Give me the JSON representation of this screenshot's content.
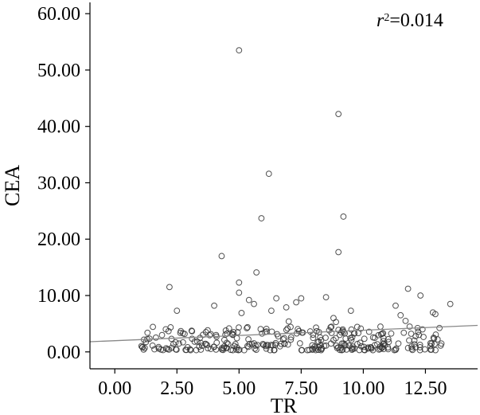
{
  "chart_data": {
    "type": "scatter",
    "title": "",
    "xlabel": "TR",
    "ylabel": "CEA",
    "xlim": [
      -1.0,
      14.6
    ],
    "ylim": [
      -3.0,
      62.0
    ],
    "xticks": [
      0,
      2.5,
      5,
      7.5,
      10,
      12.5
    ],
    "xtick_labels": [
      "0.00",
      "2.50",
      "5.00",
      "7.50",
      "10.00",
      "12.50"
    ],
    "yticks": [
      0,
      10,
      20,
      30,
      40,
      50,
      60
    ],
    "ytick_labels": [
      "0.00",
      "10.00",
      "20.00",
      "30.00",
      "40.00",
      "50.00",
      "60.00"
    ],
    "annotation": {
      "r_symbol": "r",
      "r_power": "2",
      "r_value": "=0.014"
    },
    "grid": false,
    "point_color": "#333333",
    "trendline_color": "#888888",
    "trendline": {
      "x": [
        -1.0,
        14.6
      ],
      "y": [
        1.8,
        4.7
      ]
    },
    "outliers": [
      [
        5.0,
        53.5
      ],
      [
        9.0,
        42.2
      ],
      [
        6.2,
        31.6
      ],
      [
        5.9,
        23.7
      ],
      [
        9.2,
        24.0
      ],
      [
        9.0,
        17.7
      ],
      [
        4.3,
        17.0
      ],
      [
        5.7,
        14.1
      ],
      [
        5.0,
        12.3
      ],
      [
        5.0,
        10.5
      ],
      [
        2.2,
        11.5
      ],
      [
        11.8,
        11.2
      ],
      [
        12.3,
        10.0
      ],
      [
        6.5,
        9.5
      ],
      [
        7.5,
        9.5
      ],
      [
        8.5,
        9.7
      ],
      [
        5.4,
        9.2
      ],
      [
        7.3,
        8.8
      ],
      [
        5.6,
        8.5
      ],
      [
        4.0,
        8.2
      ],
      [
        13.5,
        8.5
      ],
      [
        11.3,
        8.2
      ],
      [
        6.9,
        7.9
      ],
      [
        2.5,
        7.3
      ],
      [
        9.5,
        7.3
      ],
      [
        6.3,
        7.3
      ],
      [
        12.8,
        7.0
      ],
      [
        12.9,
        6.7
      ],
      [
        11.5,
        6.5
      ],
      [
        8.8,
        6.0
      ],
      [
        11.7,
        5.5
      ],
      [
        7.0,
        5.4
      ],
      [
        8.9,
        5.3
      ],
      [
        5.1,
        6.9
      ]
    ],
    "cluster": {
      "x_min": 1.0,
      "x_max": 13.2,
      "y_min": 0.3,
      "y_max": 4.5,
      "count": 300
    }
  }
}
